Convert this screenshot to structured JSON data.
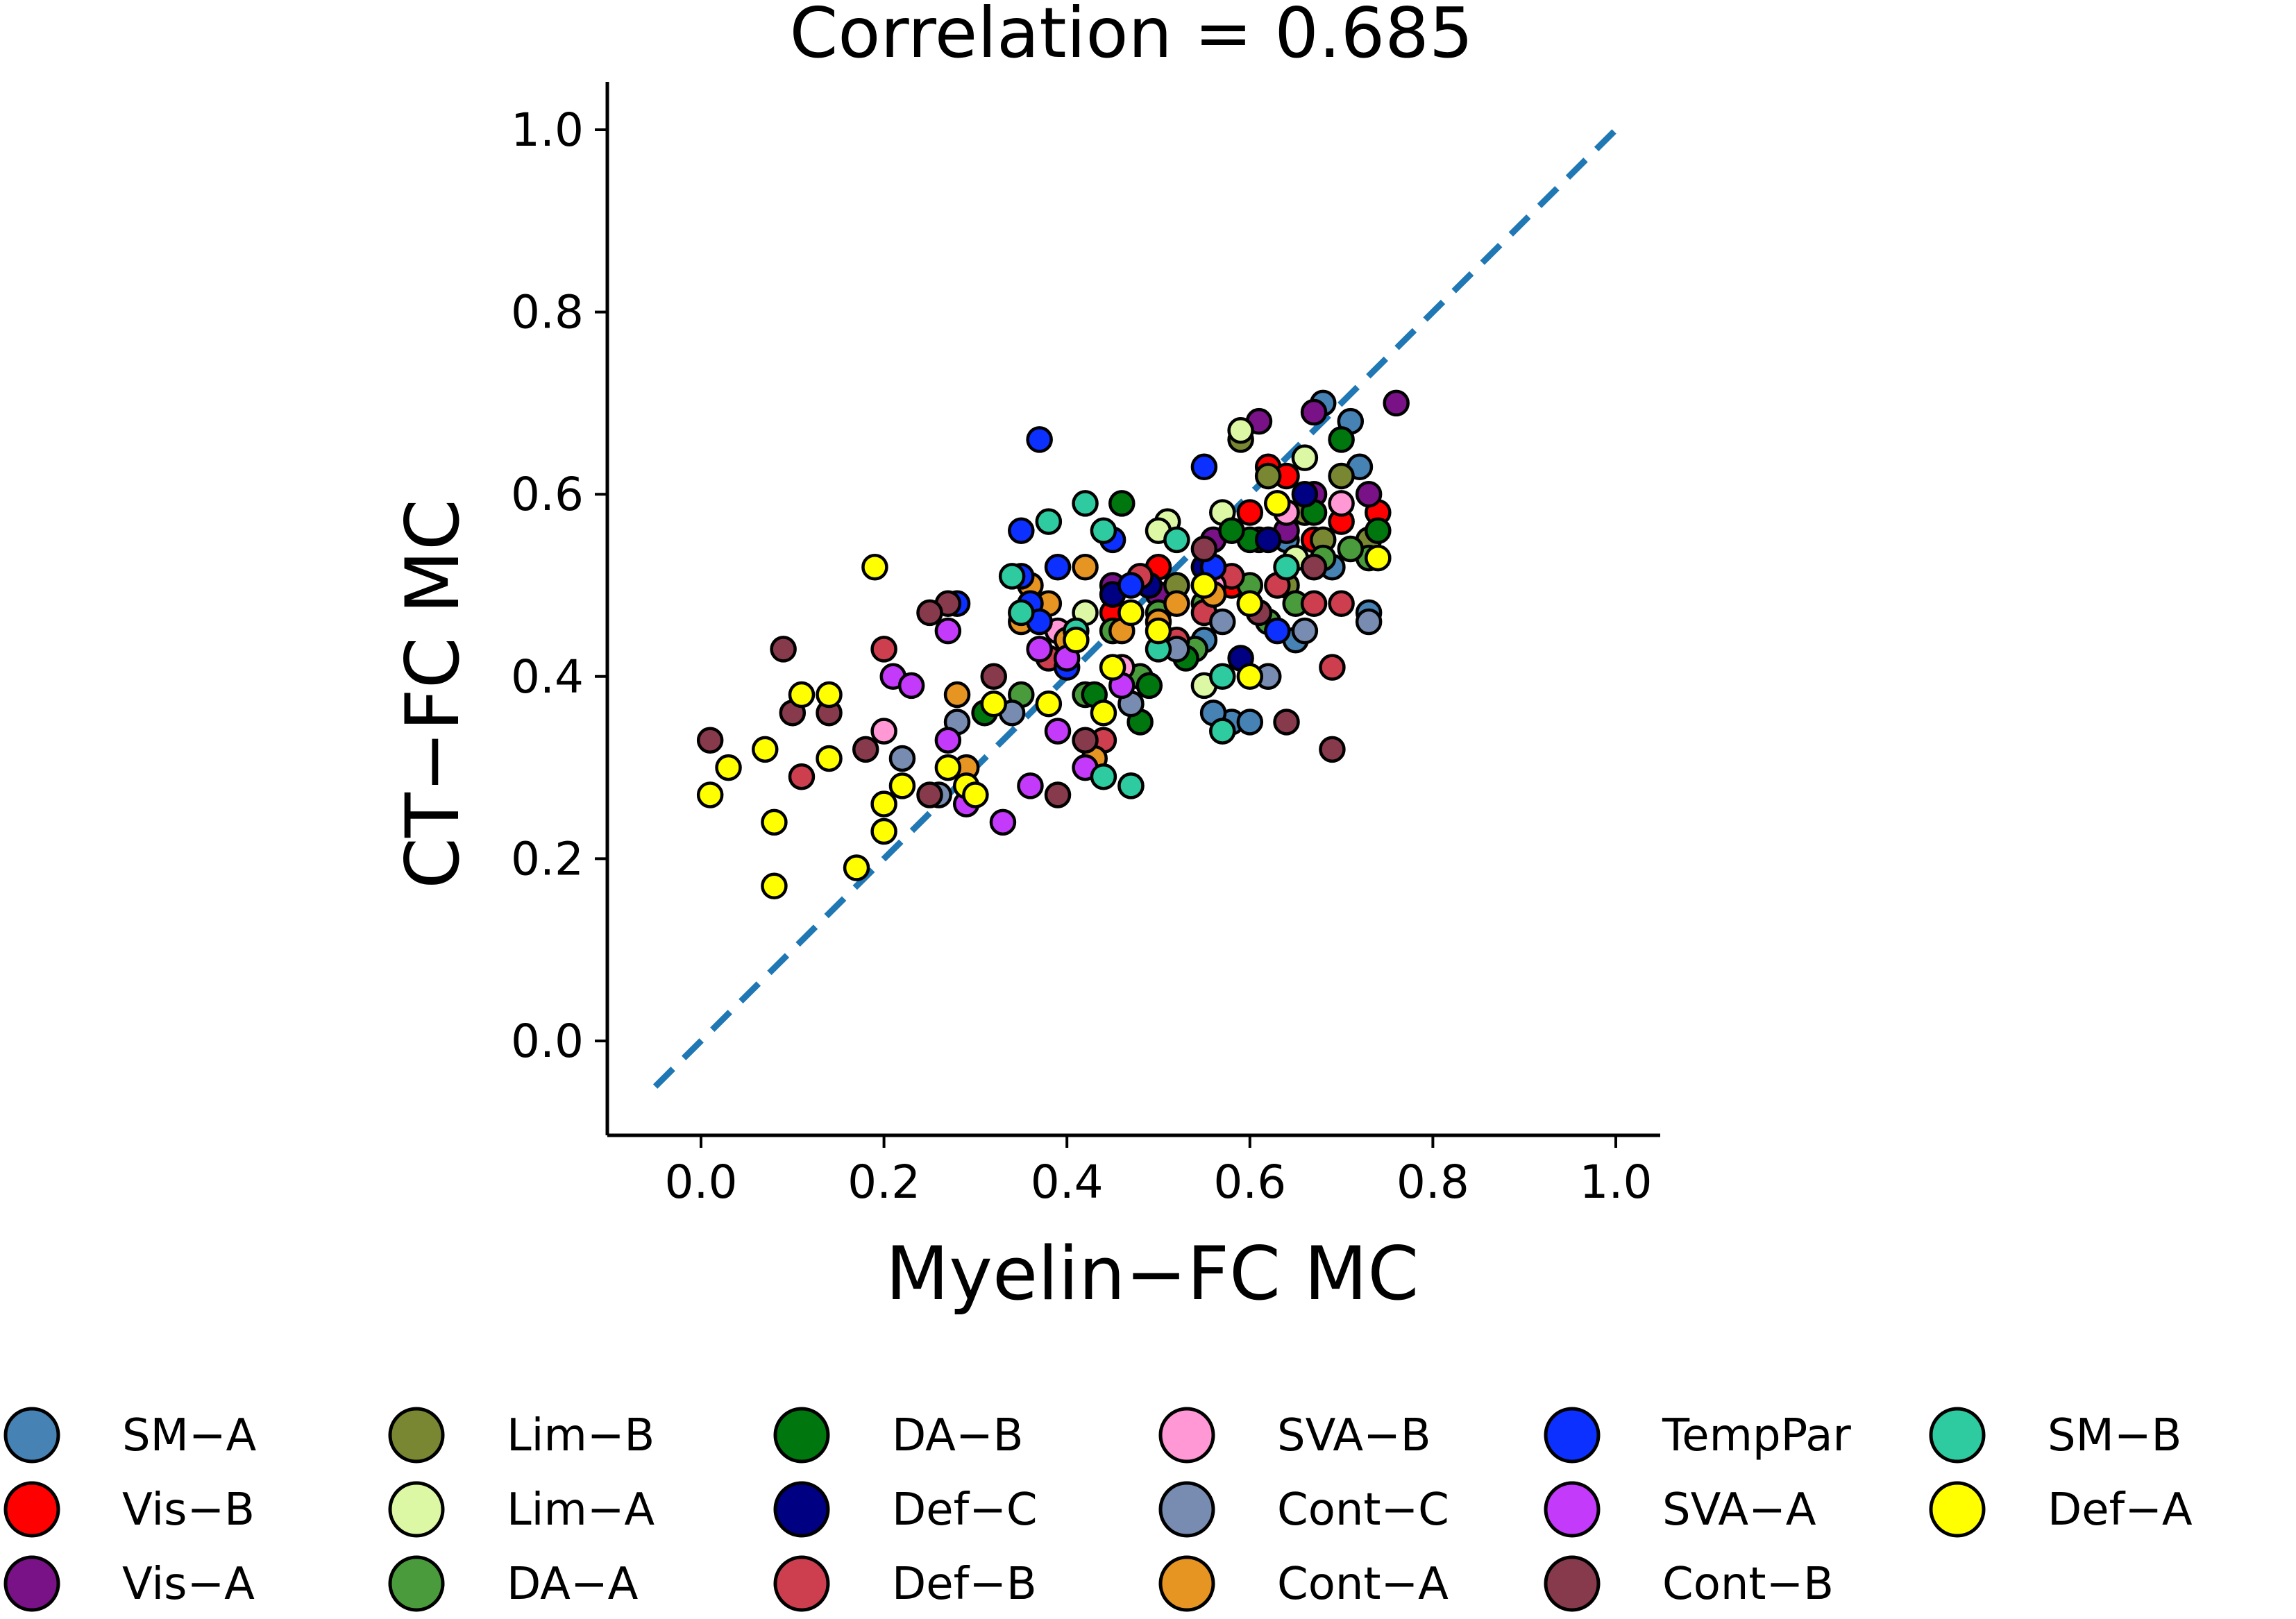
{
  "chart_data": {
    "type": "scatter",
    "title": "Correlation = 0.685",
    "xlabel": "Myelin−FC MC",
    "ylabel": "CT−FC MC",
    "xlim": [
      -0.105,
      1.05
    ],
    "ylim": [
      -0.1,
      1.05
    ],
    "xticks": [
      "0.0",
      "0.2",
      "0.4",
      "0.6",
      "0.8",
      "1.0"
    ],
    "yticks": [
      "0.0",
      "0.2",
      "0.4",
      "0.6",
      "0.8",
      "1.0"
    ],
    "xtick_values": [
      0.0,
      0.2,
      0.4,
      0.6,
      0.8,
      1.0
    ],
    "ytick_values": [
      0.0,
      0.2,
      0.4,
      0.6,
      0.8,
      1.0
    ],
    "grid": false,
    "legend_placement": "bottom",
    "reference_line": {
      "style": "dashed",
      "color": "#1f77b4",
      "x": [
        -0.05,
        1.0
      ],
      "y": [
        -0.05,
        1.0
      ]
    },
    "series": [
      {
        "name": "SM−A",
        "color": "#4682b4",
        "points": [
          [
            0.68,
            0.7
          ],
          [
            0.71,
            0.68
          ],
          [
            0.72,
            0.63
          ],
          [
            0.73,
            0.47
          ],
          [
            0.58,
            0.35
          ],
          [
            0.6,
            0.35
          ],
          [
            0.56,
            0.36
          ],
          [
            0.65,
            0.44
          ],
          [
            0.62,
            0.4
          ],
          [
            0.47,
            0.28
          ],
          [
            0.66,
            0.58
          ],
          [
            0.69,
            0.52
          ],
          [
            0.55,
            0.44
          ],
          [
            0.6,
            0.48
          ],
          [
            0.64,
            0.55
          ],
          [
            0.52,
            0.5
          ]
        ]
      },
      {
        "name": "Vis−B",
        "color": "#ff0000",
        "points": [
          [
            0.62,
            0.63
          ],
          [
            0.64,
            0.62
          ],
          [
            0.74,
            0.58
          ],
          [
            0.67,
            0.55
          ],
          [
            0.56,
            0.52
          ],
          [
            0.6,
            0.58
          ],
          [
            0.5,
            0.52
          ],
          [
            0.45,
            0.47
          ],
          [
            0.7,
            0.57
          ],
          [
            0.58,
            0.5
          ]
        ]
      },
      {
        "name": "Vis−A",
        "color": "#781286",
        "points": [
          [
            0.76,
            0.7
          ],
          [
            0.73,
            0.6
          ],
          [
            0.67,
            0.69
          ],
          [
            0.61,
            0.68
          ],
          [
            0.64,
            0.56
          ],
          [
            0.5,
            0.49
          ],
          [
            0.56,
            0.55
          ],
          [
            0.67,
            0.6
          ],
          [
            0.45,
            0.5
          ]
        ]
      },
      {
        "name": "Lim−B",
        "color": "#7a8732",
        "points": [
          [
            0.59,
            0.66
          ],
          [
            0.66,
            0.58
          ],
          [
            0.62,
            0.62
          ],
          [
            0.7,
            0.62
          ],
          [
            0.55,
            0.52
          ],
          [
            0.52,
            0.5
          ],
          [
            0.64,
            0.5
          ],
          [
            0.73,
            0.55
          ],
          [
            0.68,
            0.55
          ]
        ]
      },
      {
        "name": "Lim−A",
        "color": "#dcf8a4",
        "points": [
          [
            0.59,
            0.67
          ],
          [
            0.51,
            0.57
          ],
          [
            0.57,
            0.58
          ],
          [
            0.61,
            0.55
          ],
          [
            0.66,
            0.64
          ],
          [
            0.55,
            0.39
          ],
          [
            0.5,
            0.56
          ],
          [
            0.65,
            0.53
          ],
          [
            0.42,
            0.47
          ]
        ]
      },
      {
        "name": "DA−A",
        "color": "#4a9b3c",
        "points": [
          [
            0.73,
            0.53
          ],
          [
            0.71,
            0.54
          ],
          [
            0.65,
            0.48
          ],
          [
            0.6,
            0.5
          ],
          [
            0.55,
            0.48
          ],
          [
            0.5,
            0.47
          ],
          [
            0.45,
            0.45
          ],
          [
            0.54,
            0.43
          ],
          [
            0.62,
            0.46
          ],
          [
            0.42,
            0.38
          ],
          [
            0.35,
            0.38
          ],
          [
            0.48,
            0.4
          ],
          [
            0.68,
            0.53
          ]
        ]
      },
      {
        "name": "DA−B",
        "color": "#00760e",
        "points": [
          [
            0.46,
            0.59
          ],
          [
            0.7,
            0.66
          ],
          [
            0.74,
            0.56
          ],
          [
            0.63,
            0.59
          ],
          [
            0.55,
            0.5
          ],
          [
            0.49,
            0.39
          ],
          [
            0.48,
            0.35
          ],
          [
            0.43,
            0.38
          ],
          [
            0.53,
            0.42
          ],
          [
            0.6,
            0.55
          ],
          [
            0.31,
            0.36
          ],
          [
            0.67,
            0.58
          ],
          [
            0.58,
            0.56
          ]
        ]
      },
      {
        "name": "Def−C",
        "color": "#000082",
        "points": [
          [
            0.59,
            0.42
          ],
          [
            0.45,
            0.49
          ],
          [
            0.55,
            0.52
          ],
          [
            0.62,
            0.55
          ],
          [
            0.66,
            0.6
          ],
          [
            0.49,
            0.5
          ]
        ]
      },
      {
        "name": "Def−B",
        "color": "#cd3e4e",
        "points": [
          [
            0.69,
            0.41
          ],
          [
            0.2,
            0.43
          ],
          [
            0.11,
            0.29
          ],
          [
            0.58,
            0.51
          ],
          [
            0.63,
            0.5
          ],
          [
            0.67,
            0.48
          ],
          [
            0.44,
            0.33
          ],
          [
            0.38,
            0.42
          ],
          [
            0.55,
            0.47
          ],
          [
            0.7,
            0.48
          ],
          [
            0.48,
            0.51
          ],
          [
            0.52,
            0.44
          ]
        ]
      },
      {
        "name": "SVA−B",
        "color": "#ff98d5",
        "points": [
          [
            0.2,
            0.34
          ],
          [
            0.7,
            0.59
          ],
          [
            0.64,
            0.58
          ],
          [
            0.56,
            0.5
          ],
          [
            0.39,
            0.45
          ],
          [
            0.46,
            0.41
          ]
        ]
      },
      {
        "name": "Cont−C",
        "color": "#778cb0",
        "points": [
          [
            0.73,
            0.46
          ],
          [
            0.26,
            0.27
          ],
          [
            0.28,
            0.35
          ],
          [
            0.22,
            0.31
          ],
          [
            0.62,
            0.4
          ],
          [
            0.66,
            0.45
          ],
          [
            0.52,
            0.43
          ],
          [
            0.34,
            0.36
          ],
          [
            0.47,
            0.37
          ],
          [
            0.57,
            0.46
          ]
        ]
      },
      {
        "name": "Cont−A",
        "color": "#e69422",
        "points": [
          [
            0.36,
            0.5
          ],
          [
            0.42,
            0.52
          ],
          [
            0.38,
            0.48
          ],
          [
            0.35,
            0.46
          ],
          [
            0.43,
            0.31
          ],
          [
            0.28,
            0.38
          ],
          [
            0.52,
            0.48
          ],
          [
            0.46,
            0.45
          ],
          [
            0.4,
            0.44
          ],
          [
            0.5,
            0.46
          ],
          [
            0.29,
            0.3
          ],
          [
            0.56,
            0.49
          ]
        ]
      },
      {
        "name": "TempPar",
        "color": "#0c30ff",
        "points": [
          [
            0.37,
            0.66
          ],
          [
            0.35,
            0.56
          ],
          [
            0.28,
            0.48
          ],
          [
            0.36,
            0.48
          ],
          [
            0.39,
            0.52
          ],
          [
            0.45,
            0.55
          ],
          [
            0.47,
            0.5
          ],
          [
            0.55,
            0.63
          ],
          [
            0.63,
            0.45
          ],
          [
            0.4,
            0.41
          ],
          [
            0.37,
            0.46
          ],
          [
            0.35,
            0.51
          ],
          [
            0.56,
            0.52
          ]
        ]
      },
      {
        "name": "SVA−A",
        "color": "#c43afa",
        "points": [
          [
            0.21,
            0.4
          ],
          [
            0.23,
            0.39
          ],
          [
            0.27,
            0.45
          ],
          [
            0.27,
            0.33
          ],
          [
            0.29,
            0.26
          ],
          [
            0.33,
            0.24
          ],
          [
            0.36,
            0.28
          ],
          [
            0.42,
            0.3
          ],
          [
            0.39,
            0.34
          ],
          [
            0.46,
            0.39
          ],
          [
            0.4,
            0.42
          ],
          [
            0.37,
            0.43
          ]
        ]
      },
      {
        "name": "Cont−B",
        "color": "#873a4c",
        "points": [
          [
            0.01,
            0.33
          ],
          [
            0.09,
            0.43
          ],
          [
            0.1,
            0.36
          ],
          [
            0.14,
            0.36
          ],
          [
            0.18,
            0.32
          ],
          [
            0.25,
            0.27
          ],
          [
            0.27,
            0.48
          ],
          [
            0.25,
            0.47
          ],
          [
            0.69,
            0.32
          ],
          [
            0.64,
            0.35
          ],
          [
            0.39,
            0.27
          ],
          [
            0.32,
            0.4
          ],
          [
            0.42,
            0.33
          ],
          [
            0.61,
            0.47
          ],
          [
            0.67,
            0.52
          ],
          [
            0.55,
            0.54
          ]
        ]
      },
      {
        "name": "SM−B",
        "color": "#2ecaa0",
        "points": [
          [
            0.38,
            0.57
          ],
          [
            0.42,
            0.59
          ],
          [
            0.44,
            0.56
          ],
          [
            0.34,
            0.51
          ],
          [
            0.35,
            0.47
          ],
          [
            0.47,
            0.28
          ],
          [
            0.44,
            0.29
          ],
          [
            0.52,
            0.55
          ],
          [
            0.57,
            0.34
          ],
          [
            0.57,
            0.4
          ],
          [
            0.41,
            0.45
          ],
          [
            0.5,
            0.43
          ],
          [
            0.64,
            0.52
          ]
        ]
      },
      {
        "name": "Def−A",
        "color": "#ffff00",
        "points": [
          [
            0.19,
            0.52
          ],
          [
            0.01,
            0.27
          ],
          [
            0.03,
            0.3
          ],
          [
            0.07,
            0.32
          ],
          [
            0.08,
            0.24
          ],
          [
            0.08,
            0.17
          ],
          [
            0.11,
            0.38
          ],
          [
            0.14,
            0.38
          ],
          [
            0.14,
            0.31
          ],
          [
            0.17,
            0.19
          ],
          [
            0.2,
            0.26
          ],
          [
            0.2,
            0.23
          ],
          [
            0.22,
            0.28
          ],
          [
            0.27,
            0.3
          ],
          [
            0.29,
            0.28
          ],
          [
            0.3,
            0.27
          ],
          [
            0.32,
            0.37
          ],
          [
            0.41,
            0.44
          ],
          [
            0.44,
            0.36
          ],
          [
            0.47,
            0.47
          ],
          [
            0.5,
            0.45
          ],
          [
            0.55,
            0.5
          ],
          [
            0.6,
            0.48
          ],
          [
            0.63,
            0.59
          ],
          [
            0.6,
            0.4
          ],
          [
            0.74,
            0.53
          ],
          [
            0.45,
            0.41
          ],
          [
            0.38,
            0.37
          ]
        ]
      }
    ]
  }
}
